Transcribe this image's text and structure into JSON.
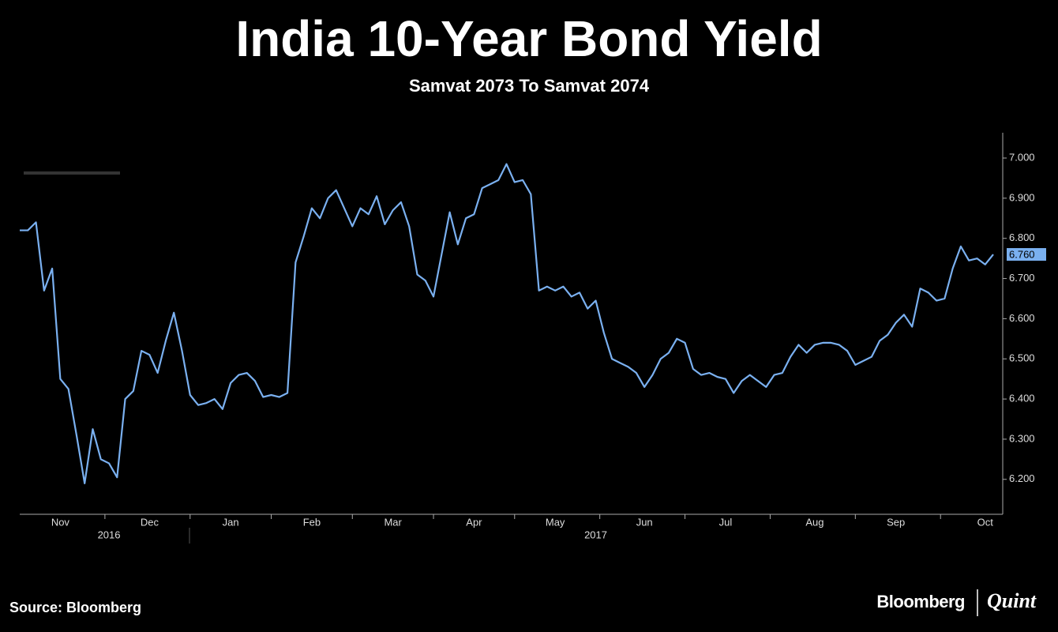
{
  "chart_data": {
    "type": "line",
    "title": "India 10-Year Bond Yield",
    "subtitle": "Samvat 2073 To Samvat 2074",
    "source": "Source: Bloomberg",
    "logo": [
      "Bloomberg",
      "Quint"
    ],
    "categories": [
      null,
      null,
      null,
      null,
      null,
      "Nov",
      null,
      null,
      null,
      null,
      null,
      null,
      null,
      null,
      null,
      null,
      "Dec",
      null,
      null,
      null,
      null,
      null,
      null,
      null,
      null,
      null,
      "Jan",
      null,
      null,
      null,
      null,
      null,
      null,
      null,
      null,
      null,
      "Feb",
      null,
      null,
      null,
      null,
      null,
      null,
      null,
      null,
      null,
      "Mar",
      null,
      null,
      null,
      null,
      null,
      null,
      null,
      null,
      null,
      "Apr",
      null,
      null,
      null,
      null,
      null,
      null,
      null,
      null,
      null,
      "May",
      null,
      null,
      null,
      null,
      null,
      null,
      null,
      null,
      null,
      null,
      "Jun",
      null,
      null,
      null,
      null,
      null,
      null,
      null,
      null,
      null,
      "Jul",
      null,
      null,
      null,
      null,
      null,
      null,
      null,
      null,
      null,
      null,
      "Aug",
      null,
      null,
      null,
      null,
      null,
      null,
      null,
      null,
      null,
      "Sep",
      null,
      null,
      null,
      null,
      null,
      null,
      null,
      null,
      null,
      null,
      "Oct",
      null
    ],
    "years": [
      null,
      null,
      null,
      null,
      null,
      null,
      null,
      null,
      null,
      null,
      null,
      "2016",
      null,
      null,
      null,
      null,
      null,
      null,
      null,
      null,
      null,
      null,
      null,
      null,
      null,
      null,
      null,
      null,
      null,
      null,
      null,
      null,
      null,
      null,
      null,
      null,
      null,
      null,
      null,
      null,
      null,
      null,
      null,
      null,
      null,
      null,
      null,
      null,
      null,
      null,
      null,
      null,
      null,
      null,
      null,
      null,
      null,
      null,
      null,
      null,
      null,
      null,
      null,
      null,
      null,
      null,
      null,
      null,
      null,
      null,
      null,
      "2017",
      null,
      null,
      null,
      null,
      null,
      null,
      null,
      null,
      null,
      null,
      null,
      null,
      null,
      null,
      null,
      null,
      null,
      null,
      null,
      null,
      null,
      null,
      null,
      null,
      null,
      null,
      null,
      null,
      null,
      null,
      null,
      null,
      null,
      null,
      null,
      null,
      null,
      null,
      null,
      null,
      null,
      null,
      null,
      null,
      null,
      null,
      null,
      null,
      null
    ],
    "series": [
      {
        "name": "India 10-Year Bond Yield",
        "color": "#7ab0f0",
        "values": [
          6.82,
          6.82,
          6.84,
          6.67,
          6.725,
          6.45,
          6.425,
          6.31,
          6.19,
          6.325,
          6.25,
          6.24,
          6.205,
          6.4,
          6.42,
          6.52,
          6.51,
          6.465,
          6.545,
          6.615,
          6.52,
          6.41,
          6.385,
          6.39,
          6.4,
          6.375,
          6.44,
          6.46,
          6.465,
          6.445,
          6.405,
          6.41,
          6.405,
          6.415,
          6.74,
          6.805,
          6.875,
          6.85,
          6.9,
          6.92,
          6.875,
          6.83,
          6.875,
          6.86,
          6.905,
          6.835,
          6.87,
          6.89,
          6.83,
          6.71,
          6.695,
          6.655,
          6.76,
          6.865,
          6.785,
          6.85,
          6.86,
          6.925,
          6.935,
          6.945,
          6.985,
          6.94,
          6.945,
          6.91,
          6.67,
          6.68,
          6.67,
          6.68,
          6.655,
          6.665,
          6.625,
          6.645,
          6.565,
          6.5,
          6.49,
          6.48,
          6.465,
          6.43,
          6.46,
          6.5,
          6.515,
          6.55,
          6.54,
          6.475,
          6.46,
          6.465,
          6.455,
          6.45,
          6.415,
          6.445,
          6.46,
          6.445,
          6.43,
          6.46,
          6.465,
          6.505,
          6.535,
          6.515,
          6.535,
          6.54,
          6.54,
          6.535,
          6.52,
          6.485,
          6.495,
          6.505,
          6.545,
          6.56,
          6.59,
          6.61,
          6.58,
          6.675,
          6.665,
          6.645,
          6.65,
          6.725,
          6.78,
          6.745,
          6.75,
          6.735,
          6.76
        ],
        "value_labels": [
          null,
          null,
          null,
          null,
          null,
          null,
          null,
          null,
          null,
          null,
          null,
          null,
          null,
          null,
          null,
          null,
          null,
          null,
          null,
          null,
          null,
          null,
          null,
          null,
          null,
          null,
          null,
          null,
          null,
          null,
          null,
          null,
          null,
          null,
          null,
          null,
          null,
          null,
          null,
          null,
          null,
          null,
          null,
          null,
          null,
          null,
          null,
          null,
          null,
          null,
          null,
          null,
          null,
          null,
          null,
          null,
          null,
          null,
          null,
          null,
          null,
          null,
          null,
          null,
          null,
          null,
          null,
          null,
          null,
          null,
          null,
          null,
          null,
          null,
          null,
          null,
          null,
          null,
          null,
          null,
          null,
          null,
          null,
          null,
          null,
          null,
          null,
          null,
          null,
          null,
          null,
          null,
          null,
          null,
          null,
          null,
          null,
          null,
          null,
          null,
          null,
          null,
          null,
          null,
          null,
          null,
          null,
          null,
          null,
          null,
          null,
          null,
          null,
          null,
          null,
          null,
          null,
          null,
          null,
          null,
          "6.760"
        ]
      }
    ],
    "ylim": [
      6.113,
      7.063
    ],
    "yticks": [
      {
        "value": 6.2,
        "label": "6.200"
      },
      {
        "value": 6.3,
        "label": "6.300"
      },
      {
        "value": 6.4,
        "label": "6.400"
      },
      {
        "value": 6.5,
        "label": "6.500"
      },
      {
        "value": 6.6,
        "label": "6.600"
      },
      {
        "value": 6.7,
        "label": "6.700"
      },
      {
        "value": 6.8,
        "label": "6.800"
      },
      {
        "value": 6.9,
        "label": "6.900"
      },
      {
        "value": 7.0,
        "label": "7.000"
      }
    ],
    "grid": false
  }
}
